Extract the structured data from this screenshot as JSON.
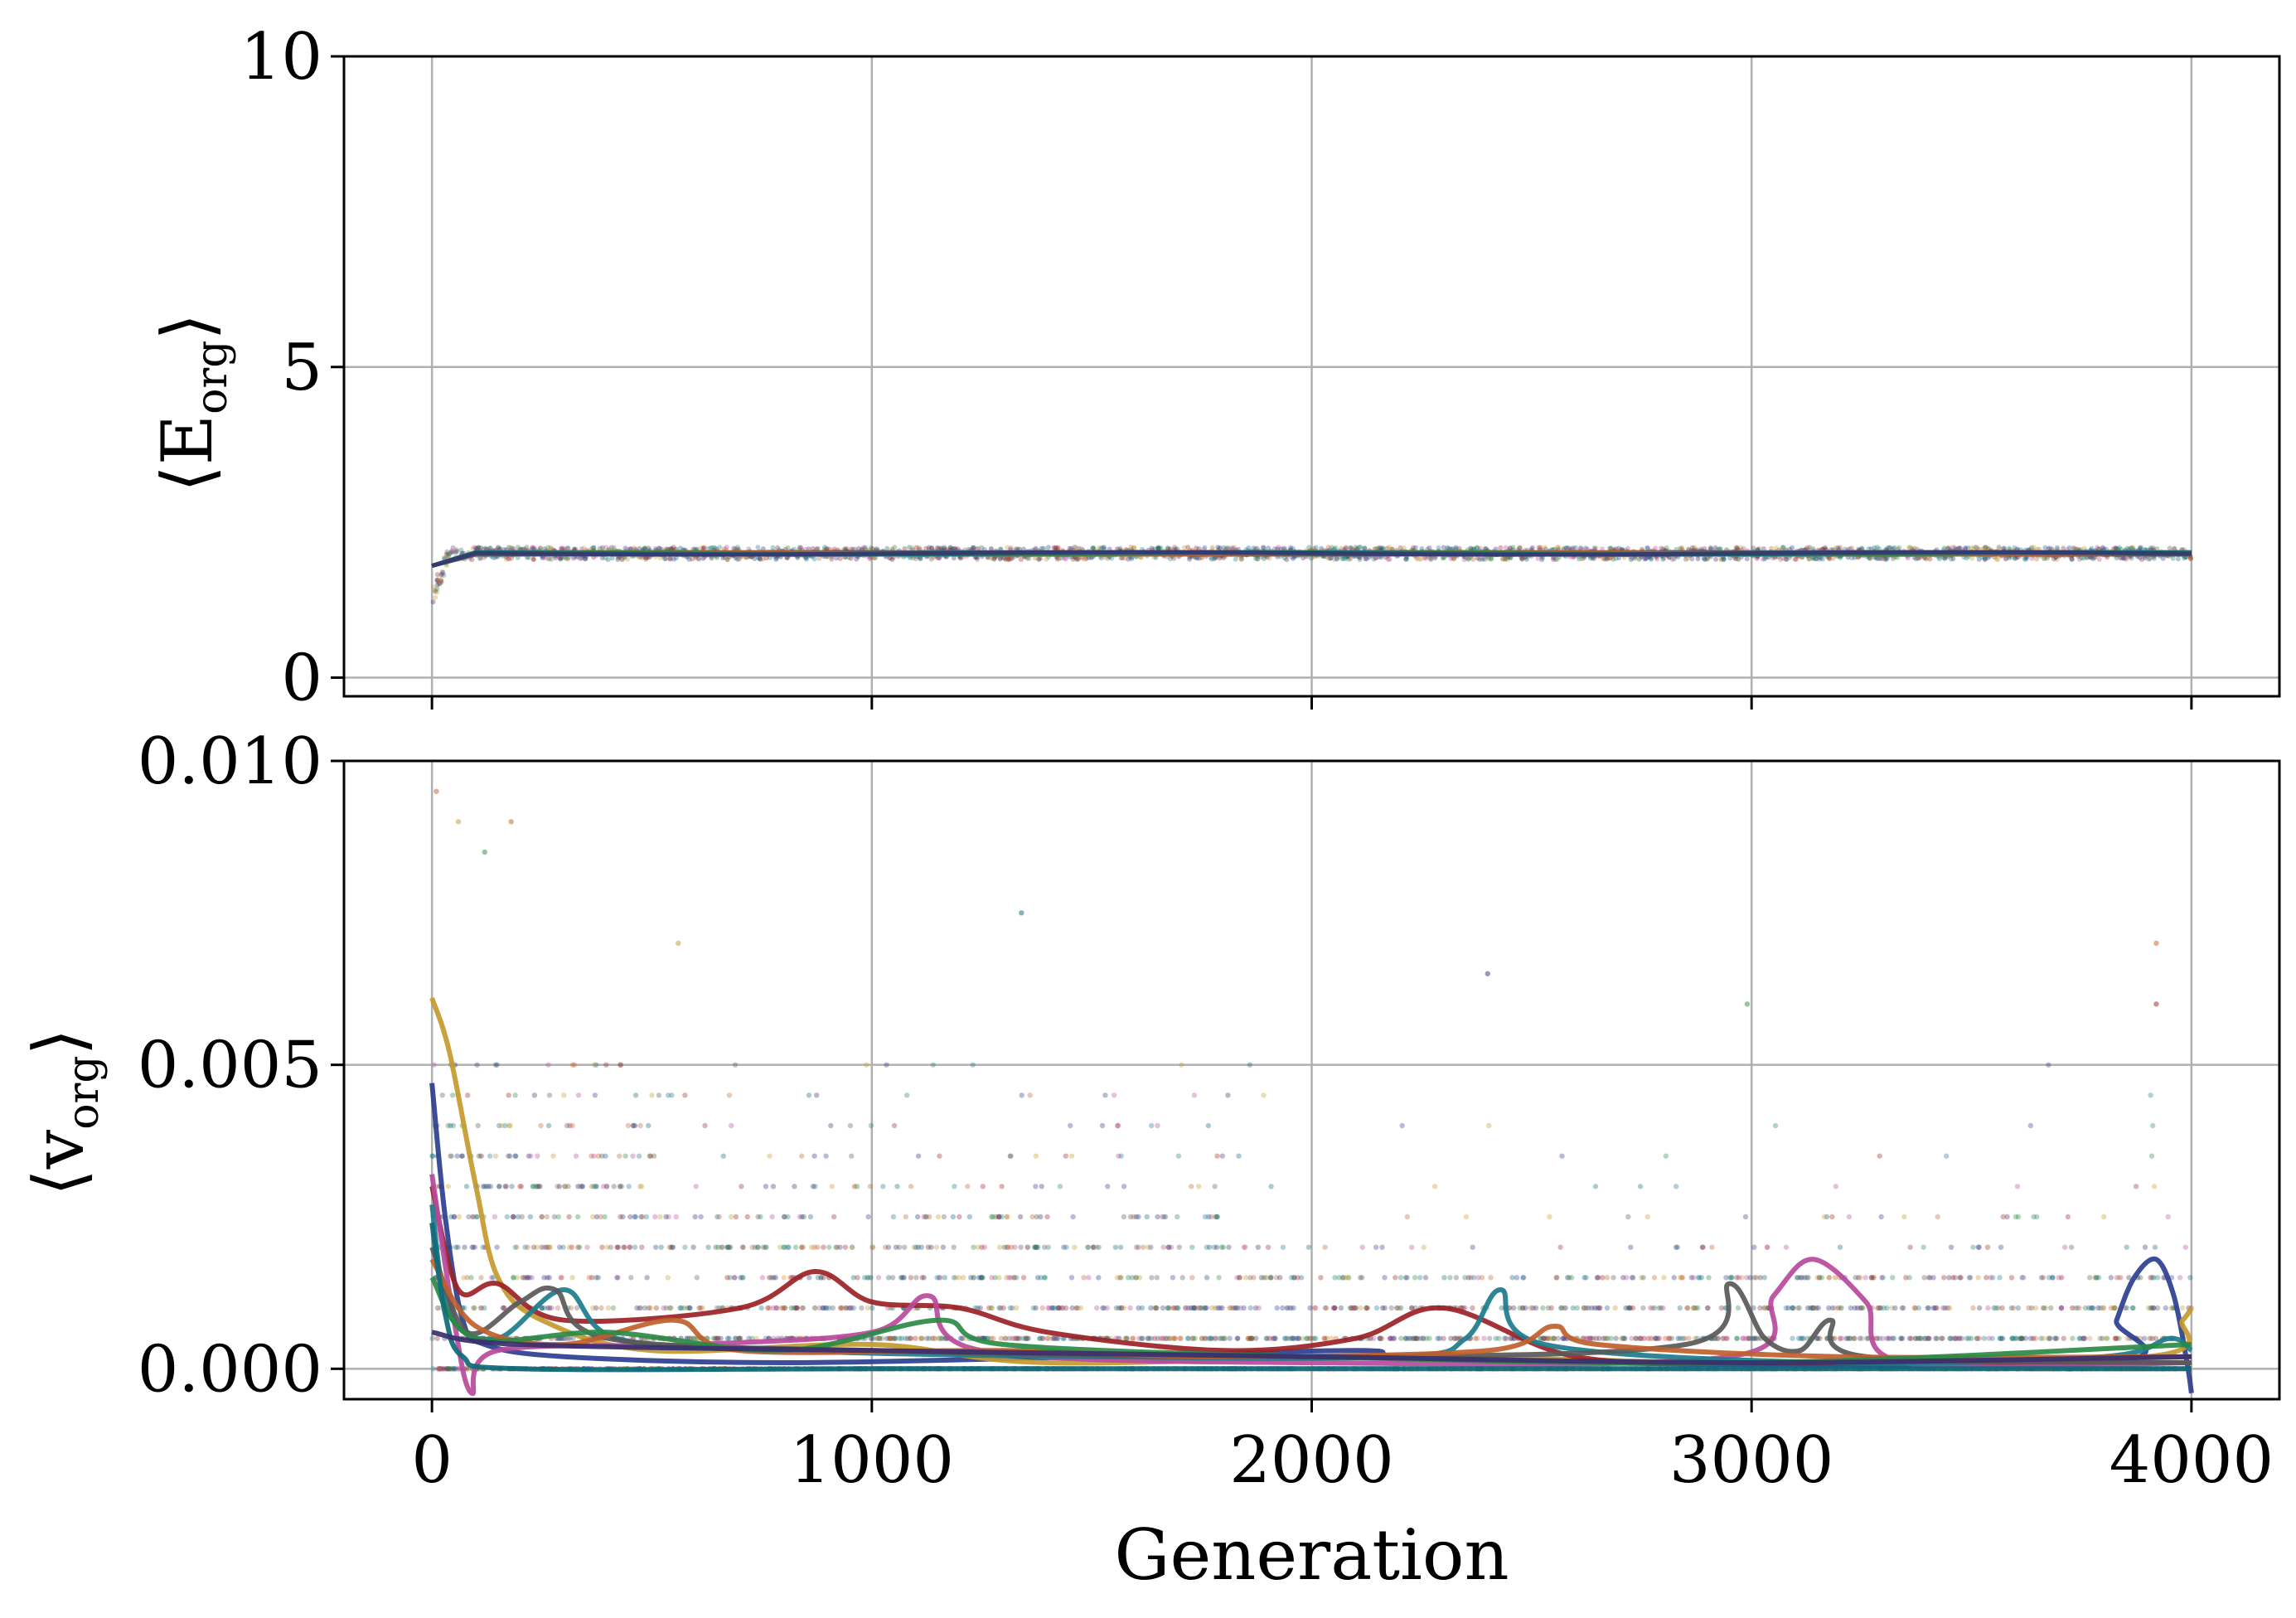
{
  "chart_data": [
    {
      "type": "scatter",
      "panel": "top",
      "ylabel": "⟨E",
      "ylabel_subscript": "org",
      "ylabel_close": "⟩",
      "xlim": [
        -200,
        4200
      ],
      "ylim": [
        -0.3,
        10
      ],
      "xticks": [
        0,
        1000,
        2000,
        3000,
        4000
      ],
      "yticks": [
        0,
        5,
        10
      ],
      "ytick_labels": [
        "0",
        "5",
        "10"
      ],
      "grid": true,
      "x_range": [
        0,
        4000
      ],
      "y_start": 1.3,
      "y_plateau": 2.0,
      "y_spread": 0.05
    },
    {
      "type": "line",
      "panel": "bottom",
      "xlabel": "Generation",
      "ylabel": "⟨v",
      "ylabel_subscript": "org",
      "ylabel_close": "⟩",
      "xlim": [
        -200,
        4200
      ],
      "ylim": [
        -0.0005,
        0.01
      ],
      "xticks": [
        0,
        1000,
        2000,
        3000,
        4000
      ],
      "xtick_labels": [
        "0",
        "1000",
        "2000",
        "3000",
        "4000"
      ],
      "yticks": [
        0,
        0.005,
        0.01
      ],
      "ytick_labels": [
        "0.000",
        "0.005",
        "0.010"
      ],
      "grid": true,
      "scatter_levels": [
        0,
        0.0005,
        0.001,
        0.0015,
        0.002,
        0.0025,
        0.003,
        0.0035,
        0.004,
        0.0045,
        0.005
      ],
      "series": [
        {
          "color": "#2b3f8f",
          "points": [
            [
              0,
              0.0047
            ],
            [
              30,
              0.0025
            ],
            [
              70,
              0.0008
            ],
            [
              120,
              0.0004
            ],
            [
              300,
              0.0002
            ],
            [
              800,
              0.0001
            ],
            [
              1500,
              0.0002
            ],
            [
              2100,
              0.0003
            ],
            [
              2200,
              0.0002
            ],
            [
              2600,
              0.0001
            ],
            [
              3800,
              0.0001
            ],
            [
              3830,
              0.0008
            ],
            [
              3870,
              0.0015
            ],
            [
              3920,
              0.0018
            ],
            [
              3960,
              0.0012
            ],
            [
              3990,
              0.0001
            ],
            [
              4000,
              -0.0004
            ]
          ]
        },
        {
          "color": "#c49a2c",
          "points": [
            [
              0,
              0.0061
            ],
            [
              40,
              0.0052
            ],
            [
              100,
              0.003
            ],
            [
              150,
              0.0015
            ],
            [
              250,
              0.0008
            ],
            [
              500,
              0.0003
            ],
            [
              1000,
              0.0004
            ],
            [
              1400,
              0.0001
            ],
            [
              2200,
              0.0002
            ],
            [
              3000,
              0.0001
            ],
            [
              3900,
              0.0002
            ],
            [
              3980,
              0.0008
            ],
            [
              4000,
              0.001
            ]
          ]
        },
        {
          "color": "#9b2226",
          "points": [
            [
              0,
              0.003
            ],
            [
              60,
              0.0013
            ],
            [
              150,
              0.0014
            ],
            [
              300,
              0.0008
            ],
            [
              700,
              0.001
            ],
            [
              870,
              0.0016
            ],
            [
              1000,
              0.0011
            ],
            [
              1200,
              0.001
            ],
            [
              1400,
              0.0006
            ],
            [
              1800,
              0.0003
            ],
            [
              2100,
              0.0005
            ],
            [
              2300,
              0.001
            ],
            [
              2600,
              0.0002
            ],
            [
              3000,
              0.0001
            ],
            [
              3500,
              0.0001
            ],
            [
              4000,
              0.0001
            ]
          ]
        },
        {
          "color": "#b84a9c",
          "points": [
            [
              0,
              0.0032
            ],
            [
              50,
              0.0008
            ],
            [
              90,
              -0.0004
            ],
            [
              150,
              0.0003
            ],
            [
              600,
              0.0004
            ],
            [
              1000,
              0.0006
            ],
            [
              1130,
              0.0012
            ],
            [
              1250,
              0.0003
            ],
            [
              2000,
              0.0001
            ],
            [
              2950,
              0.0002
            ],
            [
              3050,
              0.0012
            ],
            [
              3140,
              0.0018
            ],
            [
              3260,
              0.0011
            ],
            [
              3350,
              0.0001
            ],
            [
              4000,
              0.0001
            ]
          ]
        },
        {
          "color": "#1c7c8c",
          "points": [
            [
              0,
              0.0027
            ],
            [
              40,
              0.0009
            ],
            [
              150,
              0.0005
            ],
            [
              300,
              0.0013
            ],
            [
              420,
              0.0005
            ],
            [
              800,
              0.0003
            ],
            [
              1500,
              0.0002
            ],
            [
              2200,
              0.0002
            ],
            [
              2350,
              0.0005
            ],
            [
              2430,
              0.0013
            ],
            [
              2530,
              0.0004
            ],
            [
              3200,
              0.0001
            ],
            [
              3800,
              0.0002
            ],
            [
              3950,
              0.0005
            ],
            [
              4000,
              0.0003
            ]
          ]
        },
        {
          "color": "#595959",
          "points": [
            [
              0,
              0.002
            ],
            [
              80,
              0.0006
            ],
            [
              200,
              0.0011
            ],
            [
              280,
              0.0013
            ],
            [
              400,
              0.0005
            ],
            [
              1000,
              0.0003
            ],
            [
              2000,
              0.0002
            ],
            [
              2850,
              0.0004
            ],
            [
              2950,
              0.0014
            ],
            [
              3030,
              0.0005
            ],
            [
              3110,
              0.0003
            ],
            [
              3180,
              0.0008
            ],
            [
              3260,
              0.0002
            ],
            [
              4000,
              0.0001
            ]
          ]
        },
        {
          "color": "#c0602d",
          "points": [
            [
              0,
              0.0018
            ],
            [
              100,
              0.0007
            ],
            [
              300,
              0.0004
            ],
            [
              550,
              0.0008
            ],
            [
              700,
              0.0003
            ],
            [
              1300,
              0.0003
            ],
            [
              1800,
              0.0002
            ],
            [
              2400,
              0.0003
            ],
            [
              2550,
              0.0007
            ],
            [
              2650,
              0.0004
            ],
            [
              3200,
              0.0002
            ],
            [
              4000,
              0.0002
            ]
          ]
        },
        {
          "color": "#2a8a45",
          "points": [
            [
              0,
              0.0015
            ],
            [
              100,
              0.0005
            ],
            [
              400,
              0.0006
            ],
            [
              800,
              0.0003
            ],
            [
              1150,
              0.0008
            ],
            [
              1300,
              0.0004
            ],
            [
              2000,
              0.0002
            ],
            [
              3000,
              0.0001
            ],
            [
              4000,
              0.0004
            ]
          ]
        },
        {
          "color": "#0f6a7a",
          "points": [
            [
              0,
              0.0024
            ],
            [
              30,
              0.0009
            ],
            [
              70,
              0.0002
            ],
            [
              200,
              0
            ],
            [
              1000,
              0
            ],
            [
              2000,
              0
            ],
            [
              3000,
              0
            ],
            [
              4000,
              0
            ]
          ]
        },
        {
          "color": "#3a2f6e",
          "points": [
            [
              0,
              0.0006
            ],
            [
              200,
              0.0004
            ],
            [
              1000,
              0.0003
            ],
            [
              2000,
              0.0002
            ],
            [
              3000,
              0.0001
            ],
            [
              4000,
              0.0002
            ]
          ]
        }
      ]
    }
  ]
}
